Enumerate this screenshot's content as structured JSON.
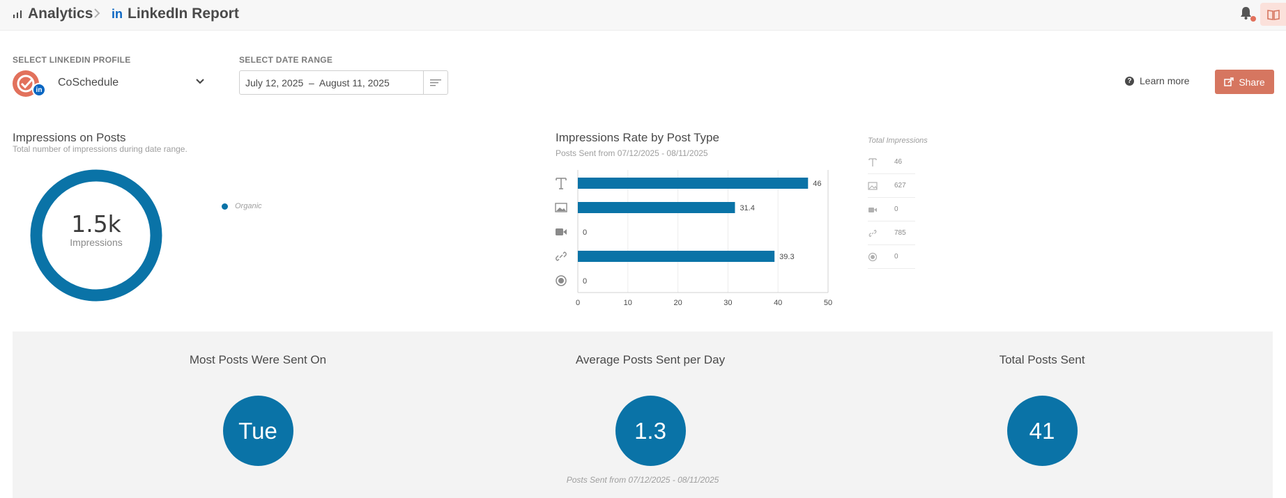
{
  "breadcrumb": {
    "analytics": "Analytics",
    "report": "LinkedIn Report"
  },
  "controls": {
    "profile_label": "SELECT LINKEDIN PROFILE",
    "profile_name": "CoSchedule",
    "date_label": "SELECT DATE RANGE",
    "date_range": "July 12, 2025  –  August 11, 2025",
    "learn_more": "Learn more",
    "share": "Share"
  },
  "impressions": {
    "title": "Impressions on Posts",
    "subtitle": "Total number of impressions during date range.",
    "value": "1.5k",
    "value_label": "Impressions",
    "legend": "Organic",
    "color": "#0a73a7"
  },
  "rate": {
    "title": "Impressions Rate by Post Type",
    "subtitle": "Posts Sent from 07/12/2025 - 08/11/2025"
  },
  "chart_data": {
    "type": "bar",
    "orientation": "horizontal",
    "categories": [
      "text-icon",
      "image-icon",
      "video-icon",
      "link-icon",
      "circle-icon"
    ],
    "values": [
      46,
      31.4,
      0,
      39.3,
      0
    ],
    "value_labels": [
      "46",
      "31.4",
      "0",
      "39.3",
      "0"
    ],
    "xlim": [
      0,
      50
    ],
    "xticks": [
      "0",
      "10",
      "20",
      "30",
      "40",
      "50"
    ],
    "grid": true,
    "color": "#0a73a7"
  },
  "total_impressions": {
    "title": "Total Impressions",
    "rows": [
      {
        "icon": "text-icon",
        "value": "46"
      },
      {
        "icon": "image-icon",
        "value": "627"
      },
      {
        "icon": "video-icon",
        "value": "0"
      },
      {
        "icon": "link-icon",
        "value": "785"
      },
      {
        "icon": "circle-icon",
        "value": "0"
      }
    ]
  },
  "stats": {
    "most_posts_title": "Most Posts Were Sent On",
    "most_posts_value": "Tue",
    "avg_title": "Average Posts Sent per Day",
    "avg_value": "1.3",
    "total_title": "Total Posts Sent",
    "total_value": "41",
    "footer": "Posts Sent from 07/12/2025 - 08/11/2025"
  }
}
